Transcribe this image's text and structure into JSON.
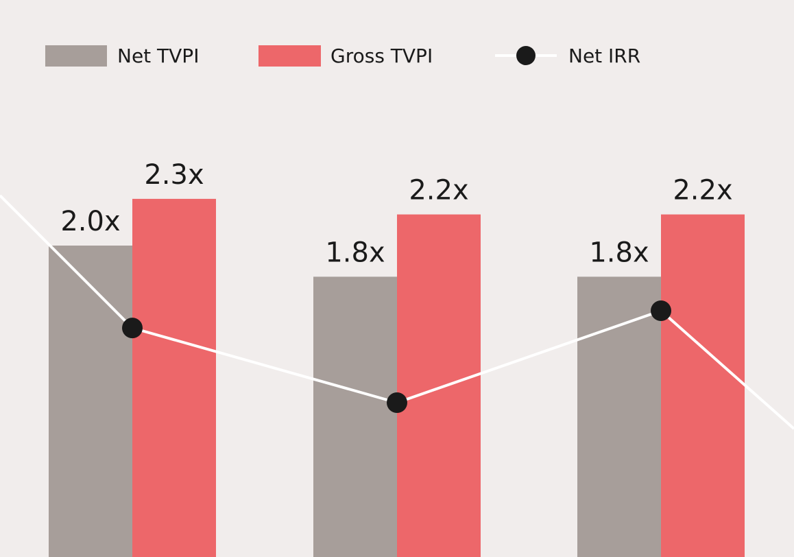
{
  "colors": {
    "background": "#f1edec",
    "net_tvpi": "#a79e9a",
    "gross_tvpi": "#ed676a",
    "net_irr_line": "#ffffff",
    "net_irr_marker": "#1a1a1a",
    "text": "#1a1a1a"
  },
  "legend": {
    "net_tvpi": "Net TVPI",
    "gross_tvpi": "Gross TVPI",
    "net_irr": "Net IRR"
  },
  "chart_data": {
    "type": "bar",
    "categories": [
      "",
      "",
      ""
    ],
    "legend_position": "top-left",
    "grid": false,
    "ylim": [
      0,
      3.5
    ],
    "series": [
      {
        "name": "Net TVPI",
        "type": "bar",
        "values": [
          2.0,
          1.8,
          1.8
        ],
        "labels": [
          "2.0x",
          "1.8x",
          "1.8x"
        ]
      },
      {
        "name": "Gross TVPI",
        "type": "bar",
        "values": [
          2.3,
          2.2,
          2.2
        ],
        "labels": [
          "2.3x",
          "2.2x",
          "2.2x"
        ]
      },
      {
        "name": "Net IRR",
        "type": "line",
        "values": [
          0.58,
          0.45,
          0.61
        ]
      }
    ]
  }
}
